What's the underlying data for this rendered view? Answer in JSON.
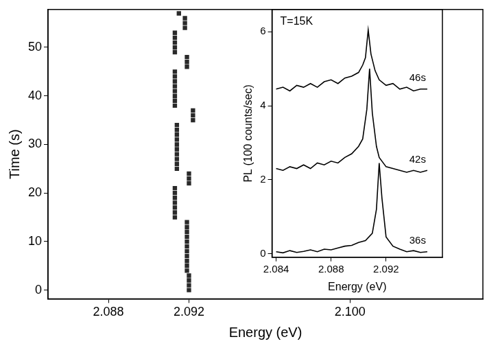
{
  "chart_data": [
    {
      "type": "scatter",
      "x_label": "Energy (eV)",
      "y_label": "Time (s)",
      "xlim": [
        2.085,
        2.1066
      ],
      "ylim": [
        -1.8,
        57.8
      ],
      "xticks": [
        2.088,
        2.092,
        {
          "value": 2.1,
          "label": "2.100"
        }
      ],
      "yticks": [
        0,
        10,
        20,
        30,
        40,
        50
      ],
      "grid": false,
      "color": "#2a2a2a",
      "marker": "square",
      "x": [
        2.092,
        2.092,
        2.092,
        2.092,
        2.0919,
        2.0919,
        2.0919,
        2.0919,
        2.0919,
        2.0919,
        2.0919,
        2.0919,
        2.0919,
        2.0919,
        2.0919,
        2.0913,
        2.0913,
        2.0913,
        2.0913,
        2.0913,
        2.0913,
        2.0913,
        2.092,
        2.092,
        2.092,
        2.0914,
        2.0914,
        2.0914,
        2.0914,
        2.0914,
        2.0914,
        2.0914,
        2.0914,
        2.0914,
        2.0914,
        2.0922,
        2.0922,
        2.0922,
        2.0913,
        2.0913,
        2.0913,
        2.0913,
        2.0913,
        2.0913,
        2.0913,
        2.0913,
        2.0919,
        2.0919,
        2.0919,
        2.0913,
        2.0913,
        2.0913,
        2.0913,
        2.0913,
        2.0918,
        2.0918,
        2.0918,
        2.0915
      ],
      "values": [
        0,
        1,
        2,
        3,
        4,
        5,
        6,
        7,
        8,
        9,
        10,
        11,
        12,
        13,
        14,
        15,
        16,
        17,
        18,
        19,
        20,
        21,
        22,
        23,
        24,
        25,
        26,
        27,
        28,
        29,
        30,
        31,
        32,
        33,
        34,
        35,
        36,
        37,
        38,
        39,
        40,
        41,
        42,
        43,
        44,
        45,
        46,
        47,
        48,
        49,
        50,
        51,
        52,
        53,
        54,
        55,
        56,
        57
      ]
    },
    {
      "type": "line",
      "annotation": "T=15K",
      "x_label": "Energy (eV)",
      "y_label": "PL (100 counts/sec)",
      "xlim": [
        2.0837,
        2.0961
      ],
      "ylim": [
        -0.1,
        6.6
      ],
      "xticks": [
        2.084,
        2.088,
        2.092
      ],
      "yticks": [
        0,
        2,
        4,
        6
      ],
      "grid": false,
      "series": [
        {
          "name": "46s",
          "color": "#000000",
          "x": [
            2.084,
            2.0845,
            2.085,
            2.0855,
            2.086,
            2.0865,
            2.087,
            2.0875,
            2.088,
            2.0885,
            2.089,
            2.0895,
            2.09,
            2.0903,
            2.0905,
            2.0907,
            2.0909,
            2.0912,
            2.0915,
            2.092,
            2.0925,
            2.093,
            2.0935,
            2.094,
            2.0945,
            2.095
          ],
          "values": [
            4.45,
            4.5,
            4.4,
            4.55,
            4.5,
            4.6,
            4.5,
            4.65,
            4.7,
            4.6,
            4.75,
            4.8,
            4.9,
            5.1,
            5.3,
            6.05,
            5.4,
            4.95,
            4.7,
            4.55,
            4.6,
            4.45,
            4.5,
            4.4,
            4.45,
            4.45
          ]
        },
        {
          "name": "42s",
          "color": "#000000",
          "x": [
            2.084,
            2.0845,
            2.085,
            2.0855,
            2.086,
            2.0865,
            2.087,
            2.0875,
            2.088,
            2.0885,
            2.089,
            2.0895,
            2.09,
            2.0903,
            2.0906,
            2.0908,
            2.091,
            2.0913,
            2.0915,
            2.092,
            2.0925,
            2.093,
            2.0935,
            2.094,
            2.0945,
            2.095
          ],
          "values": [
            2.3,
            2.25,
            2.35,
            2.3,
            2.4,
            2.3,
            2.45,
            2.4,
            2.5,
            2.45,
            2.6,
            2.7,
            2.9,
            3.1,
            3.9,
            5.0,
            3.8,
            2.9,
            2.6,
            2.35,
            2.3,
            2.25,
            2.2,
            2.25,
            2.2,
            2.25
          ]
        },
        {
          "name": "36s",
          "color": "#000000",
          "x": [
            2.084,
            2.0845,
            2.085,
            2.0855,
            2.086,
            2.0865,
            2.087,
            2.0875,
            2.088,
            2.0885,
            2.089,
            2.0895,
            2.09,
            2.0905,
            2.091,
            2.0913,
            2.0915,
            2.0917,
            2.092,
            2.0925,
            2.093,
            2.0935,
            2.094,
            2.0945,
            2.095
          ],
          "values": [
            0.05,
            0.02,
            0.08,
            0.03,
            0.06,
            0.1,
            0.05,
            0.12,
            0.1,
            0.15,
            0.2,
            0.22,
            0.3,
            0.35,
            0.55,
            1.2,
            2.45,
            1.5,
            0.45,
            0.2,
            0.12,
            0.05,
            0.08,
            0.03,
            0.05
          ]
        }
      ]
    }
  ]
}
